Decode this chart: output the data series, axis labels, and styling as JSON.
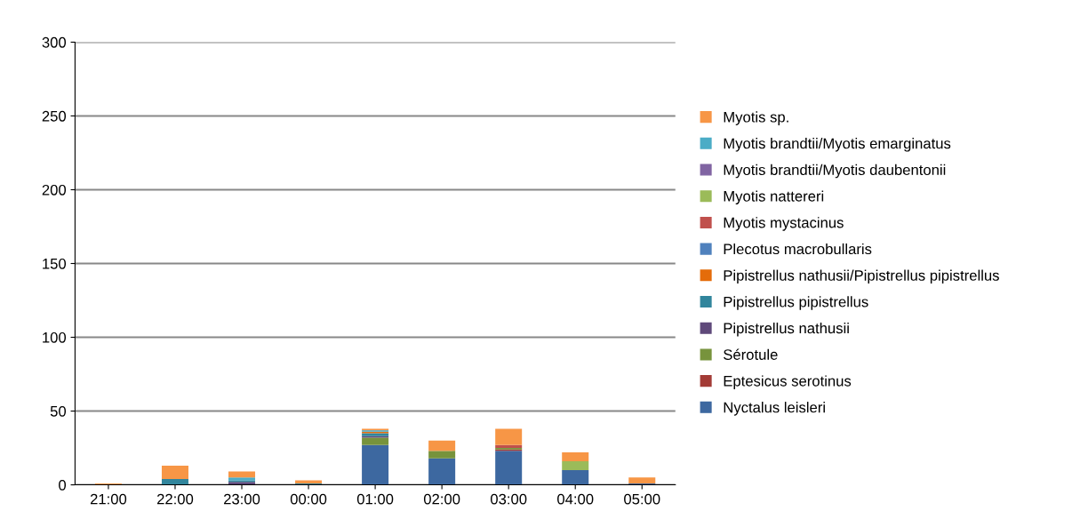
{
  "chart_data": {
    "type": "bar",
    "stacked": true,
    "categories": [
      "21:00",
      "22:00",
      "23:00",
      "00:00",
      "01:00",
      "02:00",
      "03:00",
      "04:00",
      "05:00"
    ],
    "ylim": [
      0,
      300
    ],
    "yticks": [
      0,
      50,
      100,
      150,
      200,
      250,
      300
    ],
    "grid": "y",
    "legend": "right",
    "series": [
      {
        "name": "Nyctalus leisleri",
        "color": "#3d68a0",
        "values": [
          0,
          0,
          0,
          0,
          27,
          18,
          23,
          10,
          1
        ]
      },
      {
        "name": "Eptesicus serotinus",
        "color": "#a33b36",
        "values": [
          0,
          0,
          0,
          0,
          0,
          0,
          1,
          0,
          0
        ]
      },
      {
        "name": "Sérotule",
        "color": "#77933c",
        "values": [
          0,
          0,
          0,
          0,
          5,
          5,
          1,
          0,
          0
        ]
      },
      {
        "name": "Pipistrellus nathusii",
        "color": "#5f497a",
        "values": [
          0,
          0,
          2,
          0,
          1,
          0,
          0,
          0,
          0
        ]
      },
      {
        "name": "Pipistrellus pipistrellus",
        "color": "#31859c",
        "values": [
          0,
          4,
          1,
          1,
          2,
          0,
          0,
          0,
          0
        ]
      },
      {
        "name": "Pipistrellus nathusii/Pipistrellus pipistrellus",
        "color": "#e46c0a",
        "values": [
          0,
          0,
          0,
          0,
          1,
          0,
          0,
          0,
          0
        ]
      },
      {
        "name": "Plecotus macrobullaris",
        "color": "#4f81bd",
        "values": [
          0,
          0,
          0,
          0,
          0,
          0,
          0,
          0,
          0
        ]
      },
      {
        "name": "Myotis mystacinus",
        "color": "#c0504d",
        "values": [
          0,
          0,
          0,
          0,
          0,
          0,
          2,
          0,
          0
        ]
      },
      {
        "name": "Myotis nattereri",
        "color": "#9bbb59",
        "values": [
          0,
          0,
          0,
          0,
          0,
          0,
          0,
          6,
          0
        ]
      },
      {
        "name": "Myotis brandtii/Myotis daubentonii",
        "color": "#8064a2",
        "values": [
          0,
          0,
          0,
          0,
          0,
          0,
          0,
          0,
          0
        ]
      },
      {
        "name": "Myotis brandtii/Myotis emarginatus",
        "color": "#4bacc6",
        "values": [
          0,
          0,
          2,
          0,
          1,
          0,
          0,
          0,
          0
        ]
      },
      {
        "name": "Myotis sp.",
        "color": "#f79646",
        "values": [
          1,
          9,
          4,
          2,
          1,
          7,
          11,
          6,
          4
        ]
      }
    ]
  }
}
